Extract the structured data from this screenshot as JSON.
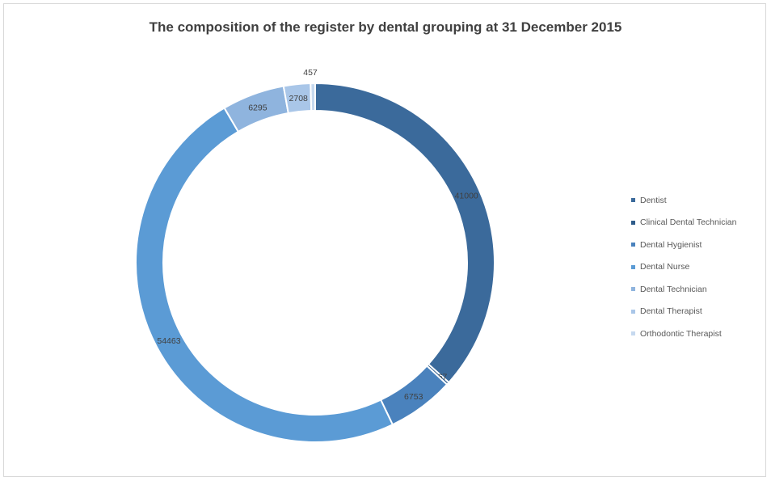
{
  "chart_data": {
    "type": "pie",
    "variant": "donut",
    "title": "The composition of the register by dental grouping at 31 December 2015",
    "legend_position": "right",
    "data_label_color": "#404040",
    "slices": [
      {
        "name": "Dentist",
        "value": 41000,
        "label": "41000",
        "color": "#3b6a9b"
      },
      {
        "name": "Clinical Dental Technician",
        "value": 267,
        "label": "267",
        "color": "#2f5c8a"
      },
      {
        "name": "Dental Hygienist",
        "value": 6753,
        "label": "6753",
        "color": "#4a82bd"
      },
      {
        "name": "Dental Nurse",
        "value": 54463,
        "label": "54463",
        "color": "#5b9bd5"
      },
      {
        "name": "Dental Technician",
        "value": 6295,
        "label": "6295",
        "color": "#8fb4de"
      },
      {
        "name": "Dental Therapist",
        "value": 2708,
        "label": "2708",
        "color": "#a9c6e8"
      },
      {
        "name": "Orthodontic Therapist",
        "value": 457,
        "label": "457",
        "color": "#c6d9ef"
      }
    ]
  }
}
